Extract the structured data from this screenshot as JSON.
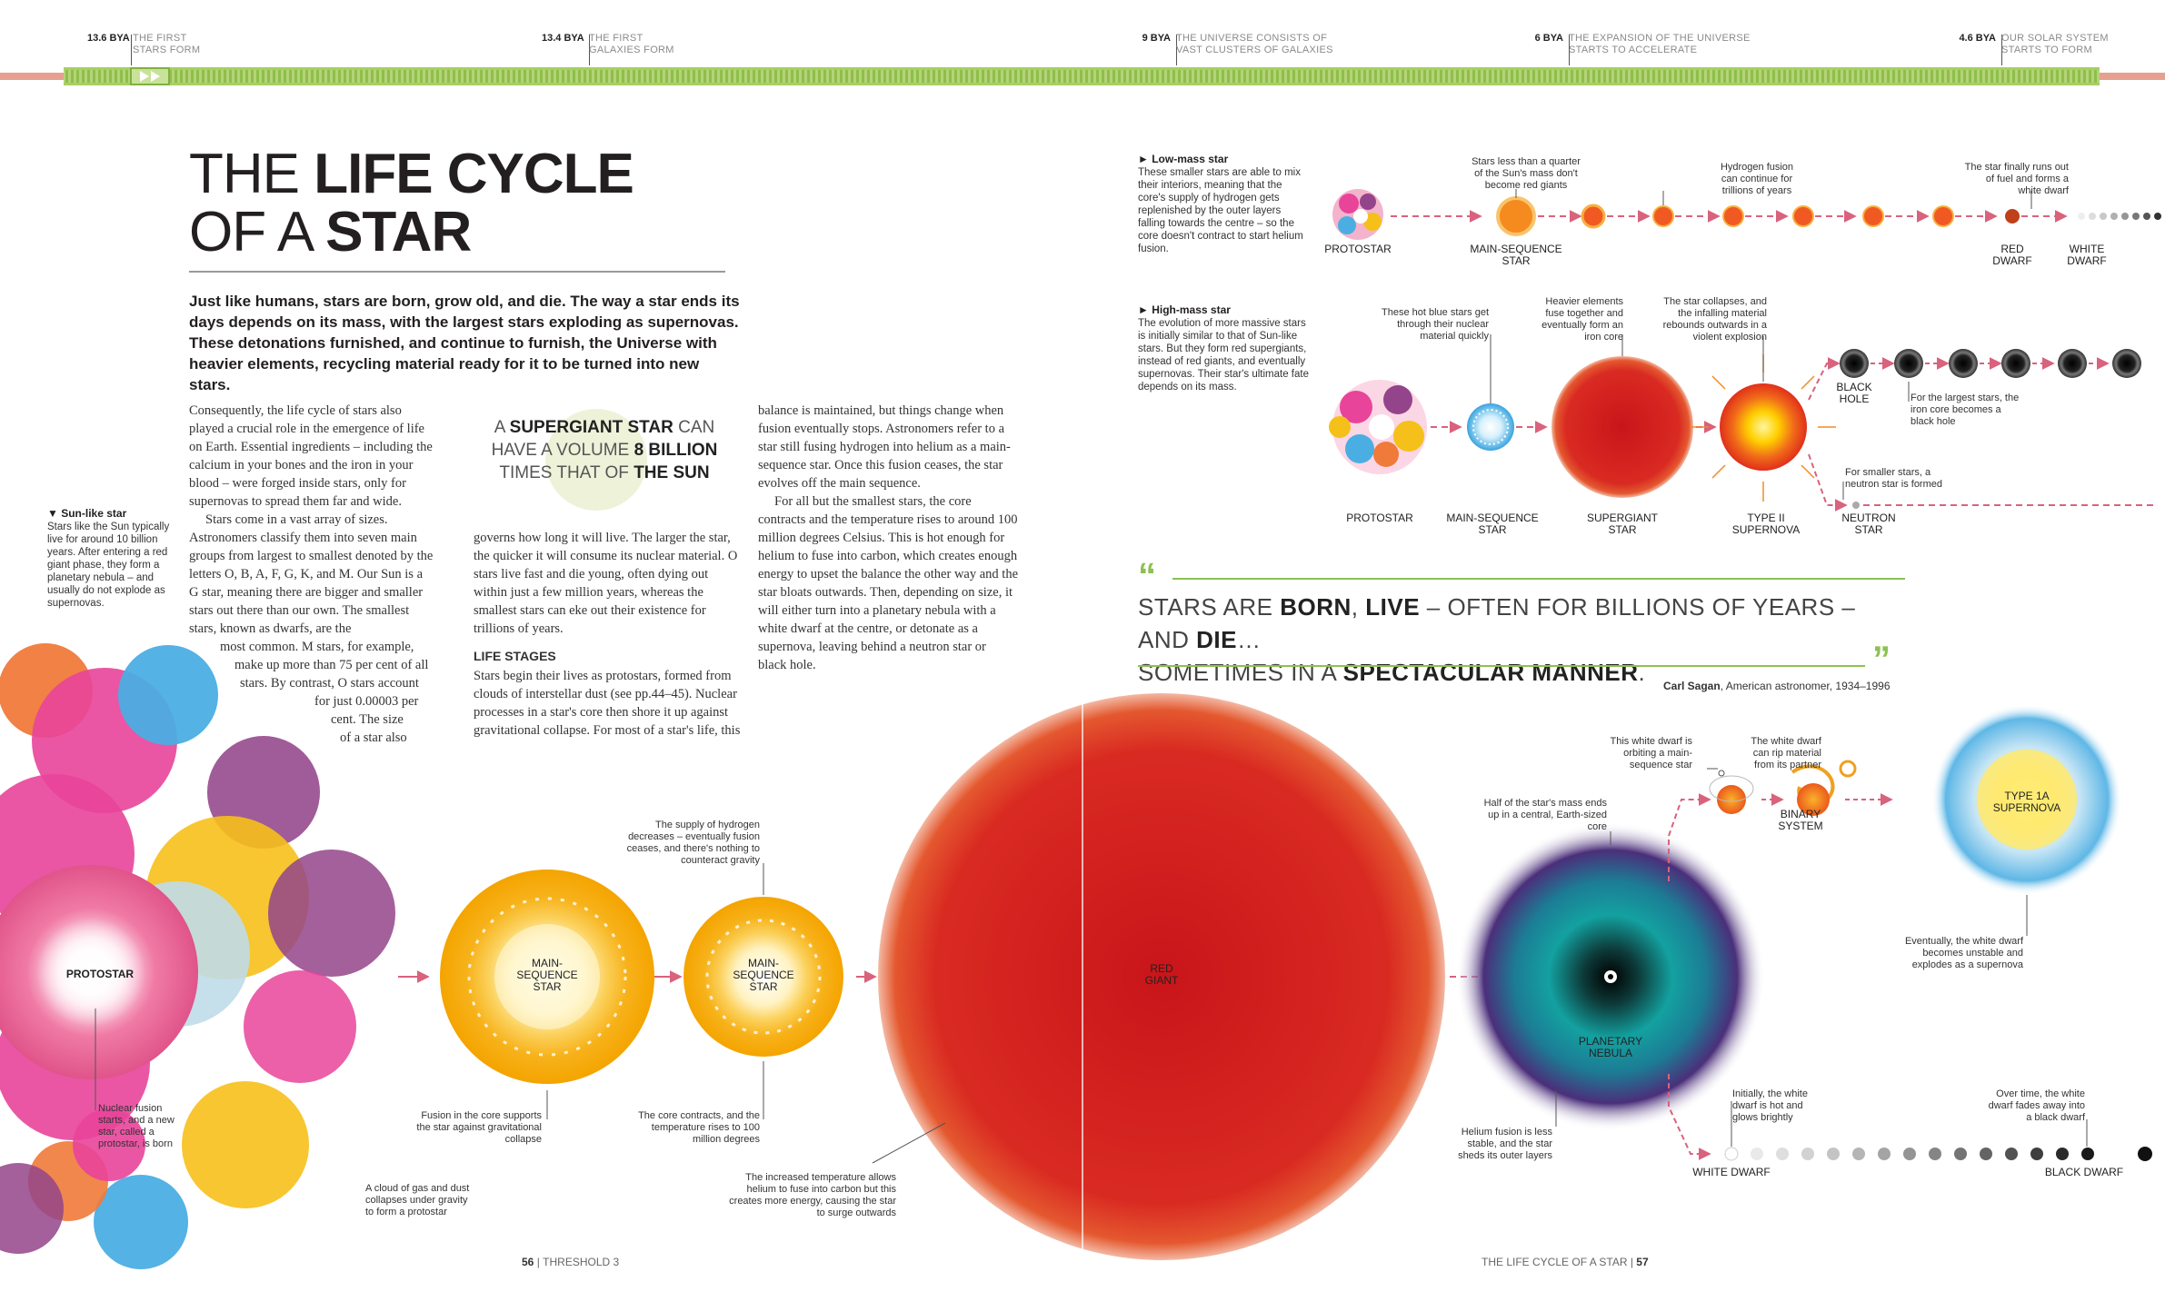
{
  "timeline": [
    {
      "date": "13.6 BYA",
      "text1": "THE FIRST",
      "text2": "STARS FORM"
    },
    {
      "date": "13.4 BYA",
      "text1": "THE FIRST",
      "text2": "GALAXIES FORM"
    },
    {
      "date": "9 BYA",
      "text1": "THE UNIVERSE CONSISTS OF",
      "text2": "VAST CLUSTERS OF GALAXIES"
    },
    {
      "date": "6 BYA",
      "text1": "THE EXPANSION OF THE UNIVERSE",
      "text2": "STARTS TO ACCELERATE"
    },
    {
      "date": "4.6 BYA",
      "text1": "OUR SOLAR SYSTEM",
      "text2": "STARTS TO FORM"
    }
  ],
  "title": {
    "line1_light": "THE ",
    "line1_bold": "LIFE CYCLE",
    "line2_light": "OF A ",
    "line2_bold": "STAR"
  },
  "intro": "Just like humans, stars are born, grow old, and die. The way a star ends its days depends on its mass, with the largest stars exploding as supernovas. These detonations furnished, and continue to furnish, the Universe with heavier elements, recycling material ready for it to be turned into new stars.",
  "body": {
    "col1_p1": "Consequently, the life cycle of stars also played a crucial role in the emergence of life on Earth. Essential ingredients – including the calcium in your bones and the iron in your blood – were forged inside stars, only for supernovas to spread them far and wide.",
    "col1_p2": "Stars come in a vast array of sizes. Astronomers classify them into seven main groups from largest to smallest denoted by the letters O, B, A, F, G, K, and M. Our Sun is a G star, meaning there are bigger and smaller stars out there than our own. The smallest stars, known as dwarfs, are the",
    "col1_p3a": "most common. M stars, for example,",
    "col1_p3b": "make up more than 75 per cent of all",
    "col1_p3c": "stars. By contrast, O stars account",
    "col1_p3d": "for just 0.00003 per",
    "col1_p3e": "cent. The size",
    "col1_p3f": "of a star also",
    "col2_p1": "governs how long it will live. The larger the star, the quicker it will consume its nuclear material. O stars live fast and die young, often dying out within just a few million years, whereas the smallest stars can eke out their existence for trillions of years.",
    "col2_head": "LIFE STAGES",
    "col2_p2": "Stars begin their lives as protostars, formed from clouds of interstellar dust (see pp.44–45). Nuclear processes in a star's core then shore it up against gravitational collapse. For most of a star's life, this",
    "col3_p1": "balance is maintained, but things change when fusion eventually stops. Astronomers refer to a star still fusing hydrogen into helium as a main-sequence star. Once this fusion ceases, the star evolves off the main sequence.",
    "col3_p2": "For all but the smallest stars, the core contracts and the temperature rises to around 100 million degrees Celsius. This is hot enough for helium to fuse into carbon, which creates enough energy to upset the balance the other way and the star bloats outwards. Then, depending on size, it will either turn into a planetary nebula with a white dwarf at the centre, or detonate as a supernova, leaving behind a neutron star or",
    "col3_p2b": "black hole."
  },
  "pullquote": {
    "a": "A ",
    "b": "SUPERGIANT STAR",
    "c": " CAN",
    "d": "HAVE A VOLUME ",
    "e": "8 BILLION",
    "f": "TIMES THAT OF ",
    "g": "THE SUN"
  },
  "sunlike": {
    "head": "▼ Sun-like star",
    "text": "Stars like the Sun typically live for around 10 billion years. After entering a red giant phase, they form a planetary nebula – and usually do not explode as supernovas."
  },
  "lowmass": {
    "head": "► Low-mass star",
    "text": "These smaller stars are able to mix their interiors, meaning that the core's supply of hydrogen gets replenished by the outer layers falling towards the centre – so the core doesn't contract to start helium fusion."
  },
  "highmass": {
    "head": "► High-mass star",
    "text": "The evolution of more massive stars is initially similar to that of Sun-like stars. But they form red supergiants, instead of red giants, and eventually supernovas. Their star's ultimate fate depends on its mass."
  },
  "lowmass_labels": {
    "protostar": "PROTOSTAR",
    "ms1": "MAIN-SEQUENCE",
    "ms2": "STAR",
    "reddwarf1": "RED",
    "reddwarf2": "DWARF",
    "whitedwarf1": "WHITE",
    "whitedwarf2": "DWARF",
    "c1": "Stars less than a quarter of the Sun's mass don't become red giants",
    "c2": "Hydrogen fusion can continue for trillions of years",
    "c3": "The star finally runs out of fuel and forms a white dwarf"
  },
  "highmass_labels": {
    "protostar": "PROTOSTAR",
    "ms1": "MAIN-SEQUENCE",
    "ms2": "STAR",
    "sg1": "SUPERGIANT",
    "sg2": "STAR",
    "sn1": "TYPE II",
    "sn2": "SUPERNOVA",
    "bh1": "BLACK",
    "bh2": "HOLE",
    "ns1": "NEUTRON",
    "ns2": "STAR",
    "c1": "These hot blue stars get through their nuclear material quickly",
    "c2": "Heavier elements fuse together and eventually form an iron core",
    "c3": "The star collapses, and the infalling material rebounds outwards in a violent explosion",
    "c4": "For the largest stars, the iron core becomes a black hole",
    "c5": "For smaller stars, a neutron star is formed"
  },
  "quote": {
    "a": "STARS ARE ",
    "b": "BORN",
    "c": ", ",
    "d": "LIVE",
    "e": " – OFTEN FOR BILLIONS OF YEARS – AND ",
    "f": "DIE",
    "g": "…",
    "h": "SOMETIMES IN A ",
    "i": "SPECTACULAR MANNER",
    "j": ".",
    "attrib_name": "Carl Sagan",
    "attrib_rest": ", American astronomer, 1934–1996"
  },
  "main_labels": {
    "protostar": "PROTOSTAR",
    "ms1a": "MAIN-",
    "ms1b": "SEQUENCE",
    "ms1c": "STAR",
    "ms2a": "MAIN-",
    "ms2b": "SEQUENCE",
    "ms2c": "STAR",
    "rg1": "RED",
    "rg2": "GIANT",
    "pn1": "PLANETARY",
    "pn2": "NEBULA",
    "wd": "WHITE DWARF",
    "bd": "BLACK DWARF",
    "bs1": "BINARY",
    "bs2": "SYSTEM",
    "t1a1": "TYPE 1A",
    "t1a2": "SUPERNOVA"
  },
  "main_callouts": {
    "cloud": "A cloud of gas and dust collapses under gravity to form a protostar",
    "nuclear": "Nuclear fusion starts, and a new star, called a protostar, is born",
    "fusion": "Fusion in the core supports the star against gravitational collapse",
    "hydrogen": "The supply of hydrogen decreases – eventually fusion ceases, and there's nothing to counteract gravity",
    "contracts": "The core contracts, and the temperature rises to 100 million degrees",
    "increased": "The increased temperature allows helium to fuse into carbon but this creates more energy, causing the star to surge outwards",
    "half": "Half of the star's mass ends up in a central, Earth-sized core",
    "helium": "Helium fusion is less stable, and the star sheds its outer layers",
    "orbiting": "This white dwarf is orbiting a main-sequence star",
    "rip": "The white dwarf can rip material from its partner",
    "unstable": "Eventually, the white dwarf becomes unstable and explodes as a supernova",
    "hot": "Initially, the white dwarf is hot and glows brightly",
    "fades": "Over time, the white dwarf fades away into a black dwarf"
  },
  "footer": {
    "left_num": "56",
    "left_txt": "THRESHOLD 3",
    "right_txt": "THE LIFE CYCLE OF A STAR",
    "right_num": "57"
  },
  "colors": {
    "accent_green": "#8cc152",
    "arrow_pink": "#d9627d",
    "red_giant": "#d7261f",
    "main_seq": "#f7a600"
  }
}
